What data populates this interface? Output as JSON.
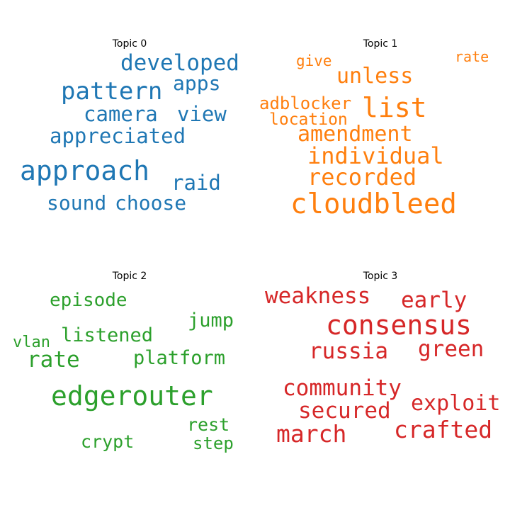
{
  "chart_data": [
    {
      "type": "wordcloud",
      "title": "Topic 0",
      "color": "#1f77b4",
      "words": [
        {
          "text": "approach",
          "weight": 1.0
        },
        {
          "text": "pattern",
          "weight": 0.85
        },
        {
          "text": "developed",
          "weight": 0.8
        },
        {
          "text": "camera",
          "weight": 0.76
        },
        {
          "text": "appreciated",
          "weight": 0.76
        },
        {
          "text": "view",
          "weight": 0.76
        },
        {
          "text": "raid",
          "weight": 0.76
        },
        {
          "text": "sound",
          "weight": 0.72
        },
        {
          "text": "choose",
          "weight": 0.72
        },
        {
          "text": "apps",
          "weight": 0.72
        }
      ]
    },
    {
      "type": "wordcloud",
      "title": "Topic 1",
      "color": "#ff7f0e",
      "words": [
        {
          "text": "cloudbleed",
          "weight": 1.0
        },
        {
          "text": "list",
          "weight": 0.98
        },
        {
          "text": "individual",
          "weight": 0.82
        },
        {
          "text": "recorded",
          "weight": 0.82
        },
        {
          "text": "unless",
          "weight": 0.78
        },
        {
          "text": "amendment",
          "weight": 0.78
        },
        {
          "text": "adblocker",
          "weight": 0.62
        },
        {
          "text": "location",
          "weight": 0.6
        },
        {
          "text": "give",
          "weight": 0.56
        },
        {
          "text": "rate",
          "weight": 0.54
        }
      ]
    },
    {
      "type": "wordcloud",
      "title": "Topic 2",
      "color": "#2ca02c",
      "words": [
        {
          "text": "edgerouter",
          "weight": 1.0
        },
        {
          "text": "rate",
          "weight": 0.82
        },
        {
          "text": "platform",
          "weight": 0.72
        },
        {
          "text": "listened",
          "weight": 0.72
        },
        {
          "text": "jump",
          "weight": 0.72
        },
        {
          "text": "episode",
          "weight": 0.7
        },
        {
          "text": "crypt",
          "weight": 0.68
        },
        {
          "text": "rest",
          "weight": 0.68
        },
        {
          "text": "step",
          "weight": 0.64
        },
        {
          "text": "vlan",
          "weight": 0.6
        }
      ]
    },
    {
      "type": "wordcloud",
      "title": "Topic 3",
      "color": "#d62728",
      "words": [
        {
          "text": "consensus",
          "weight": 1.0
        },
        {
          "text": "crafted",
          "weight": 0.88
        },
        {
          "text": "march",
          "weight": 0.88
        },
        {
          "text": "weakness",
          "weight": 0.84
        },
        {
          "text": "early",
          "weight": 0.84
        },
        {
          "text": "green",
          "weight": 0.84
        },
        {
          "text": "russia",
          "weight": 0.84
        },
        {
          "text": "community",
          "weight": 0.84
        },
        {
          "text": "secured",
          "weight": 0.84
        },
        {
          "text": "exploit",
          "weight": 0.82
        }
      ]
    }
  ]
}
